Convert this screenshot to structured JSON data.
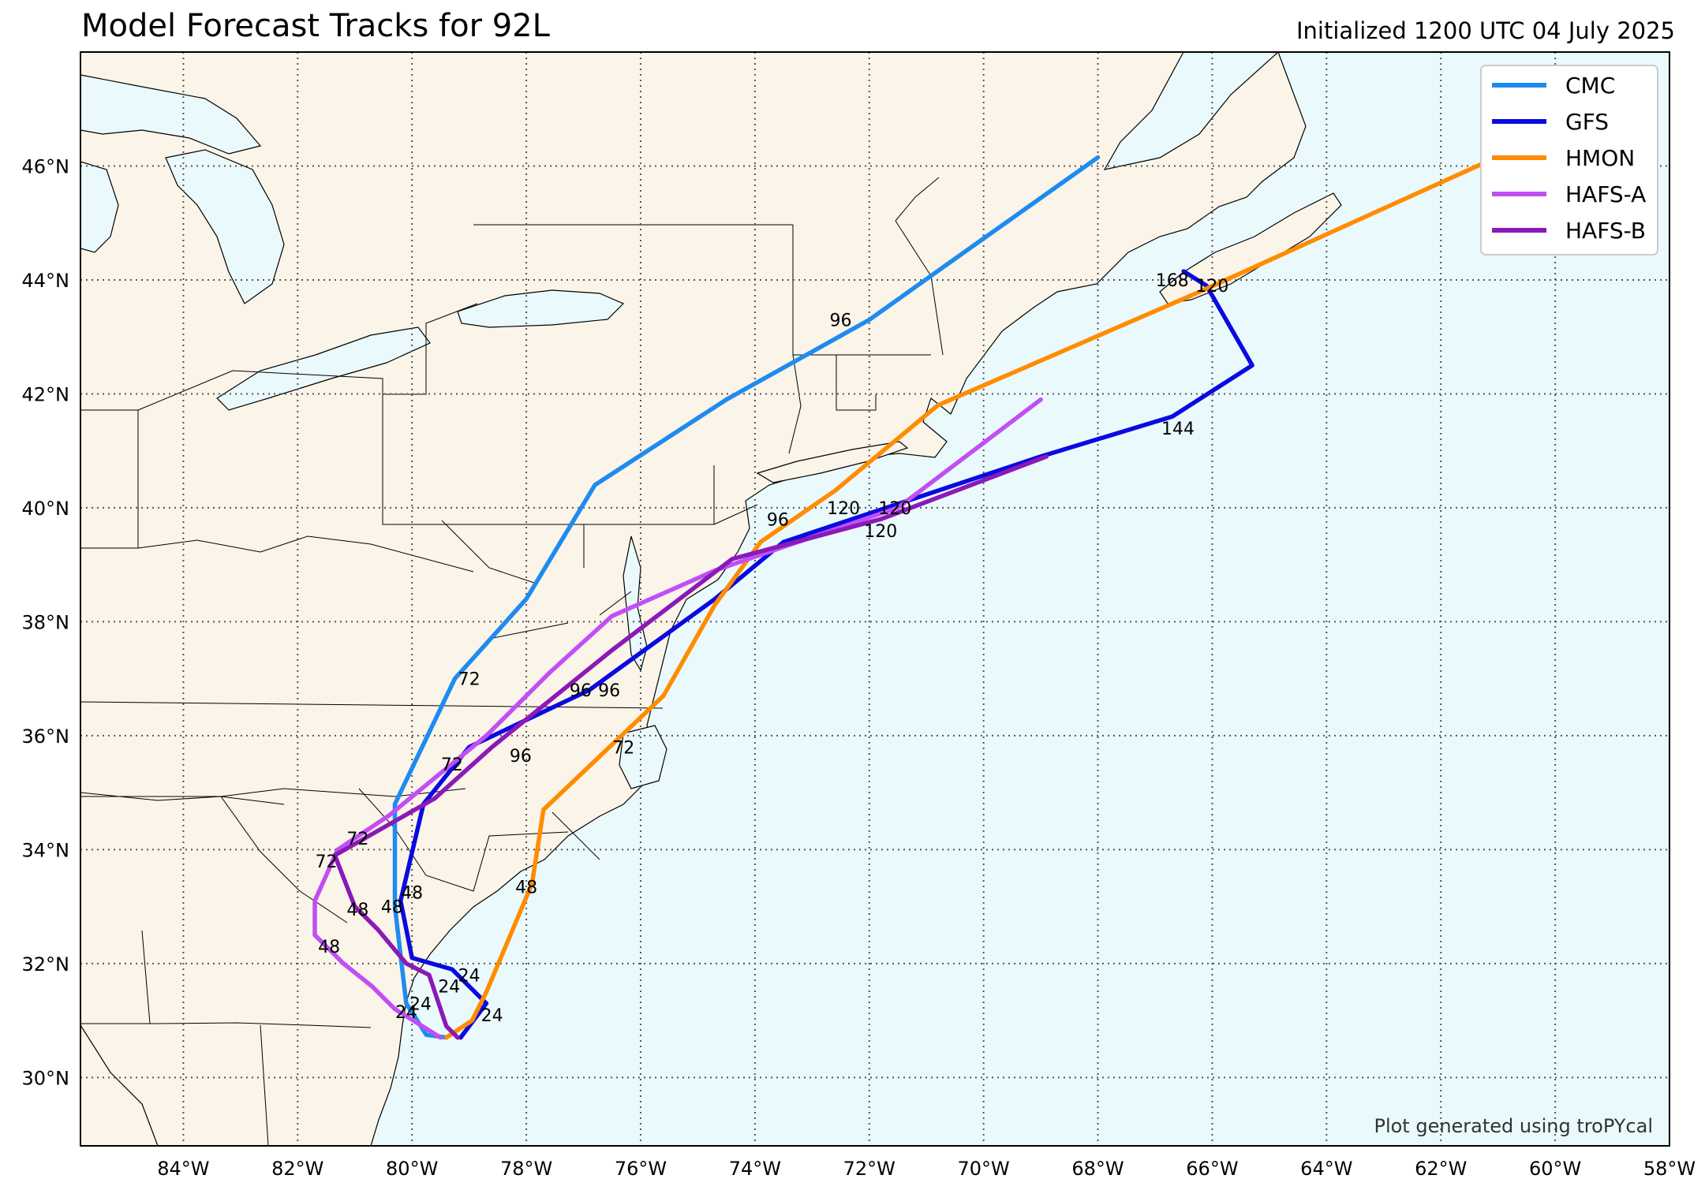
{
  "title": "Model Forecast Tracks for 92L",
  "initialized": "Initialized 1200 UTC 04 July 2025",
  "credit": "Plot generated using troPYcal",
  "colors": {
    "ocean": "#eaf9fc",
    "land": "#fbf4e8",
    "grid": "#555555"
  },
  "lat_labels": [
    "30°N",
    "32°N",
    "34°N",
    "36°N",
    "38°N",
    "40°N",
    "42°N",
    "44°N",
    "46°N"
  ],
  "lon_labels": [
    "84°W",
    "82°W",
    "80°W",
    "78°W",
    "76°W",
    "74°W",
    "72°W",
    "70°W",
    "68°W",
    "66°W",
    "64°W",
    "62°W",
    "60°W",
    "58°W"
  ],
  "chart_data": {
    "type": "map-tracks",
    "lon_range": [
      -85.8,
      -58
    ],
    "lat_range": [
      28.8,
      48
    ],
    "tracks": [
      {
        "name": "CMC",
        "color": "#1e8bf0",
        "points": [
          [
            -79.4,
            30.7
          ],
          [
            -79.75,
            30.75
          ],
          [
            -80.1,
            31.3
          ],
          [
            -80.3,
            33.0
          ],
          [
            -80.3,
            34.8
          ],
          [
            -79.25,
            37.0
          ],
          [
            -78.0,
            38.4
          ],
          [
            -76.8,
            40.4
          ],
          [
            -74.5,
            41.9
          ],
          [
            -72.0,
            43.3
          ],
          [
            -70.6,
            44.3
          ],
          [
            -68.0,
            46.15
          ]
        ],
        "labels": [
          {
            "t": "24",
            "lon": -80.1,
            "lat": 31.15
          },
          {
            "t": "48",
            "lon": -80.35,
            "lat": 33.0
          },
          {
            "t": "72",
            "lon": -79.0,
            "lat": 37.0
          },
          {
            "t": "96",
            "lon": -72.5,
            "lat": 43.3
          }
        ]
      },
      {
        "name": "GFS",
        "color": "#0a0ae0",
        "points": [
          [
            -79.15,
            30.7
          ],
          [
            -78.7,
            31.3
          ],
          [
            -79.3,
            31.9
          ],
          [
            -80.0,
            32.1
          ],
          [
            -80.2,
            33.1
          ],
          [
            -79.8,
            34.8
          ],
          [
            -79.0,
            35.8
          ],
          [
            -76.9,
            36.8
          ],
          [
            -74.7,
            38.4
          ],
          [
            -73.5,
            39.4
          ],
          [
            -72.0,
            39.9
          ],
          [
            -69.0,
            40.9
          ],
          [
            -66.7,
            41.6
          ],
          [
            -65.3,
            42.5
          ],
          [
            -66.1,
            43.9
          ],
          [
            -66.5,
            44.15
          ]
        ],
        "labels": [
          {
            "t": "24",
            "lon": -79.0,
            "lat": 31.8
          },
          {
            "t": "48",
            "lon": -80.0,
            "lat": 33.25
          },
          {
            "t": "72",
            "lon": -79.3,
            "lat": 35.5
          },
          {
            "t": "96",
            "lon": -76.55,
            "lat": 36.8
          },
          {
            "t": "120",
            "lon": -71.8,
            "lat": 39.6
          },
          {
            "t": "144",
            "lon": -66.6,
            "lat": 41.4
          },
          {
            "t": "168",
            "lon": -66.7,
            "lat": 44.0
          }
        ]
      },
      {
        "name": "HMON",
        "color": "#ff8c00",
        "points": [
          [
            -79.4,
            30.7
          ],
          [
            -78.95,
            31.0
          ],
          [
            -78.7,
            31.5
          ],
          [
            -77.9,
            33.4
          ],
          [
            -77.7,
            34.7
          ],
          [
            -75.6,
            36.7
          ],
          [
            -74.7,
            38.3
          ],
          [
            -73.9,
            39.4
          ],
          [
            -72.6,
            40.3
          ],
          [
            -70.8,
            41.8
          ],
          [
            -68.5,
            42.8
          ],
          [
            -66.2,
            43.8
          ],
          [
            -60.7,
            46.3
          ]
        ],
        "labels": [
          {
            "t": "24",
            "lon": -78.6,
            "lat": 31.1
          },
          {
            "t": "48",
            "lon": -78.0,
            "lat": 33.35
          },
          {
            "t": "72",
            "lon": -76.3,
            "lat": 35.8
          },
          {
            "t": "96",
            "lon": -73.6,
            "lat": 39.8
          },
          {
            "t": "120",
            "lon": -66.0,
            "lat": 43.9
          }
        ]
      },
      {
        "name": "HAFS-A",
        "color": "#c04ff4",
        "points": [
          [
            -79.5,
            30.7
          ],
          [
            -80.3,
            31.2
          ],
          [
            -80.7,
            31.6
          ],
          [
            -81.2,
            32.0
          ],
          [
            -81.7,
            32.5
          ],
          [
            -81.7,
            33.1
          ],
          [
            -81.3,
            34.0
          ],
          [
            -80.4,
            34.6
          ],
          [
            -78.7,
            36.0
          ],
          [
            -77.6,
            37.1
          ],
          [
            -76.5,
            38.1
          ],
          [
            -74.7,
            38.9
          ],
          [
            -71.5,
            40.0
          ],
          [
            -69.0,
            41.9
          ]
        ],
        "labels": [
          {
            "t": "24",
            "lon": -79.85,
            "lat": 31.3
          },
          {
            "t": "48",
            "lon": -81.45,
            "lat": 32.3
          },
          {
            "t": "72",
            "lon": -80.95,
            "lat": 34.2
          },
          {
            "t": "96",
            "lon": -77.05,
            "lat": 36.8
          },
          {
            "t": "120",
            "lon": -72.45,
            "lat": 40.0
          }
        ]
      },
      {
        "name": "HAFS-B",
        "color": "#8b19b8",
        "points": [
          [
            -79.2,
            30.7
          ],
          [
            -79.4,
            30.9
          ],
          [
            -79.7,
            31.8
          ],
          [
            -80.1,
            32.0
          ],
          [
            -80.6,
            32.6
          ],
          [
            -81.0,
            33.0
          ],
          [
            -81.35,
            33.9
          ],
          [
            -79.6,
            34.9
          ],
          [
            -78.6,
            35.8
          ],
          [
            -76.5,
            37.5
          ],
          [
            -74.4,
            39.1
          ],
          [
            -71.8,
            39.8
          ],
          [
            -68.9,
            40.9
          ]
        ],
        "labels": [
          {
            "t": "24",
            "lon": -79.35,
            "lat": 31.6
          },
          {
            "t": "48",
            "lon": -80.95,
            "lat": 32.95
          },
          {
            "t": "72",
            "lon": -81.5,
            "lat": 33.8
          },
          {
            "t": "96",
            "lon": -78.1,
            "lat": 35.65
          },
          {
            "t": "120",
            "lon": -71.55,
            "lat": 40.0
          }
        ]
      }
    ],
    "legend": {
      "position": "top-right",
      "entries": [
        "CMC",
        "GFS",
        "HMON",
        "HAFS-A",
        "HAFS-B"
      ]
    }
  }
}
